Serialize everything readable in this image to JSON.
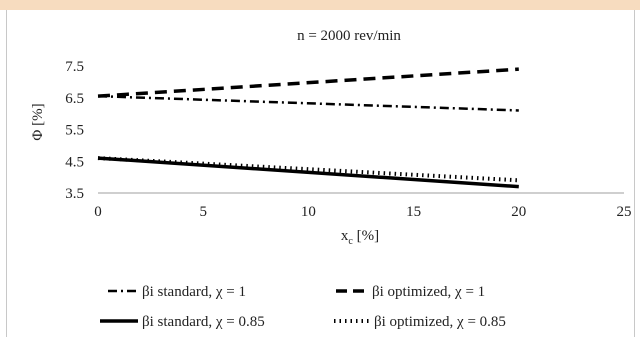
{
  "chart_data": {
    "type": "line",
    "title": "n = 2000 rev/min",
    "xlabel": "x",
    "xlabel_sub": "c",
    "xlabel_unit": " [%]",
    "ylabel": "Φ [%]",
    "xlim": [
      0,
      25
    ],
    "ylim": [
      3.5,
      7.5
    ],
    "xticks": [
      "0",
      "5",
      "10",
      "15",
      "20",
      "25"
    ],
    "yticks": [
      "3.5",
      "4.5",
      "5.5",
      "6.5",
      "7.5"
    ],
    "grid": false,
    "legend_position": "bottom",
    "series": [
      {
        "name": "βi standard,  χ = 1",
        "style": "dashdot",
        "x": [
          0,
          20
        ],
        "y": [
          6.55,
          6.1
        ]
      },
      {
        "name": "βi optimized,  χ = 1",
        "style": "dash",
        "x": [
          0,
          20
        ],
        "y": [
          6.55,
          7.4
        ]
      },
      {
        "name": "βi standard,  χ = 0.85",
        "style": "solid",
        "x": [
          0,
          20
        ],
        "y": [
          4.6,
          3.7
        ]
      },
      {
        "name": "βi optimized,  χ = 0.85",
        "style": "dot",
        "x": [
          0,
          20
        ],
        "y": [
          4.6,
          3.9
        ]
      }
    ],
    "colors": {
      "line": "#000000",
      "axis": "#bfbfbf"
    }
  }
}
